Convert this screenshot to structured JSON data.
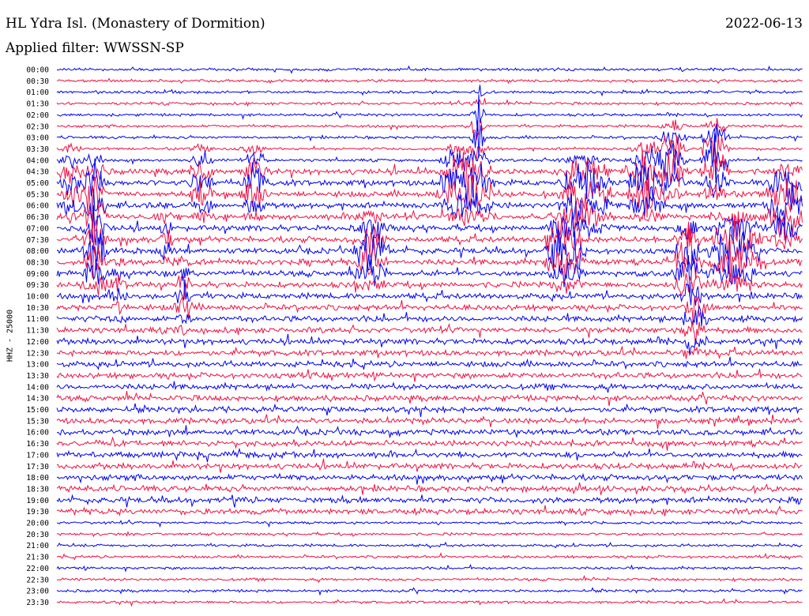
{
  "title": "HL Ydra Isl. (Monastery of Dormition)",
  "date": "2022-06-13",
  "filter": "Applied filter: WWSSN-SP",
  "ylabel": "HHZ - 25000",
  "colors": {
    "trace_a": "#0000ee",
    "trace_b": "#ee1144"
  },
  "chart_data": {
    "type": "line",
    "title": "HL Ydra Isl. (Monastery of Dormition)",
    "ylabel": "HHZ - 25000",
    "rows": [
      "00:00",
      "00:30",
      "01:00",
      "01:30",
      "02:00",
      "02:30",
      "03:00",
      "03:30",
      "04:00",
      "04:30",
      "05:00",
      "05:30",
      "06:00",
      "06:30",
      "07:00",
      "07:30",
      "08:00",
      "08:30",
      "09:00",
      "09:30",
      "10:00",
      "10:30",
      "11:00",
      "11:30",
      "12:00",
      "12:30",
      "13:00",
      "13:30",
      "14:00",
      "14:30",
      "15:00",
      "15:30",
      "16:00",
      "16:30",
      "17:00",
      "17:30",
      "18:00",
      "18:30",
      "19:00",
      "19:30",
      "20:00",
      "20:30",
      "21:00",
      "21:30",
      "22:00",
      "22:30",
      "23:00",
      "23:30"
    ],
    "series_colors": [
      "#0000ee",
      "#ee1144"
    ],
    "grid": false
  }
}
